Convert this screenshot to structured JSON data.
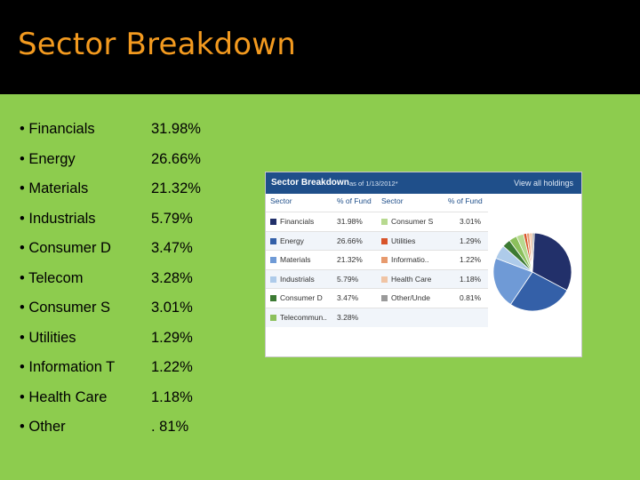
{
  "slide": {
    "title": "Sector Breakdown",
    "bullets": [
      {
        "label": "• Financials",
        "value": "31.98%"
      },
      {
        "label": "• Energy",
        "value": "26.66%"
      },
      {
        "label": "• Materials",
        "value": "21.32%"
      },
      {
        "label": "• Industrials",
        "value": "5.79%"
      },
      {
        "label": "• Consumer D",
        "value": "3.47%"
      },
      {
        "label": "• Telecom",
        "value": "3.28%"
      },
      {
        "label": "• Consumer S",
        "value": "3.01%"
      },
      {
        "label": "• Utilities",
        "value": "1.29%"
      },
      {
        "label": "• Information T",
        "value": "1.22%"
      },
      {
        "label": "• Health Care",
        "value": "1.18%"
      },
      {
        "label": "• Other",
        "value": ". 81%"
      }
    ]
  },
  "widget": {
    "title": "Sector Breakdown",
    "date": "as of 1/13/2012*",
    "link": "View all holdings",
    "headers": {
      "sector": "Sector",
      "pct": "% of Fund"
    },
    "left_rows": [
      {
        "sector": "Financials",
        "pct": "31.98%",
        "color": "#22306a"
      },
      {
        "sector": "Energy",
        "pct": "26.66%",
        "color": "#3460a8"
      },
      {
        "sector": "Materials",
        "pct": "21.32%",
        "color": "#6f9ad6"
      },
      {
        "sector": "Industrials",
        "pct": "5.79%",
        "color": "#aecbea"
      },
      {
        "sector": "Consumer D",
        "pct": "3.47%",
        "color": "#3c7a33"
      },
      {
        "sector": "Telecommun..",
        "pct": "3.28%",
        "color": "#8cc05c"
      }
    ],
    "right_rows": [
      {
        "sector": "Consumer S",
        "pct": "3.01%",
        "color": "#b7d98f"
      },
      {
        "sector": "Utilities",
        "pct": "1.29%",
        "color": "#d8542a"
      },
      {
        "sector": "Informatio..",
        "pct": "1.22%",
        "color": "#e79a6e"
      },
      {
        "sector": "Health Care",
        "pct": "1.18%",
        "color": "#f0c4a4"
      },
      {
        "sector": "Other/Unde",
        "pct": "0.81%",
        "color": "#9a9a9a"
      }
    ]
  },
  "chart_data": {
    "type": "pie",
    "categories": [
      "Financials",
      "Energy",
      "Materials",
      "Industrials",
      "Consumer D",
      "Telecommun..",
      "Consumer S",
      "Utilities",
      "Informatio..",
      "Health Care",
      "Other/Unde"
    ],
    "values": [
      31.98,
      26.66,
      21.32,
      5.79,
      3.47,
      3.28,
      3.01,
      1.29,
      1.22,
      1.18,
      0.81
    ],
    "colors": [
      "#22306a",
      "#3460a8",
      "#6f9ad6",
      "#aecbea",
      "#3c7a33",
      "#8cc05c",
      "#b7d98f",
      "#d8542a",
      "#e79a6e",
      "#f0c4a4",
      "#9a9a9a"
    ],
    "title": "Sector Breakdown",
    "legend": "left table"
  }
}
